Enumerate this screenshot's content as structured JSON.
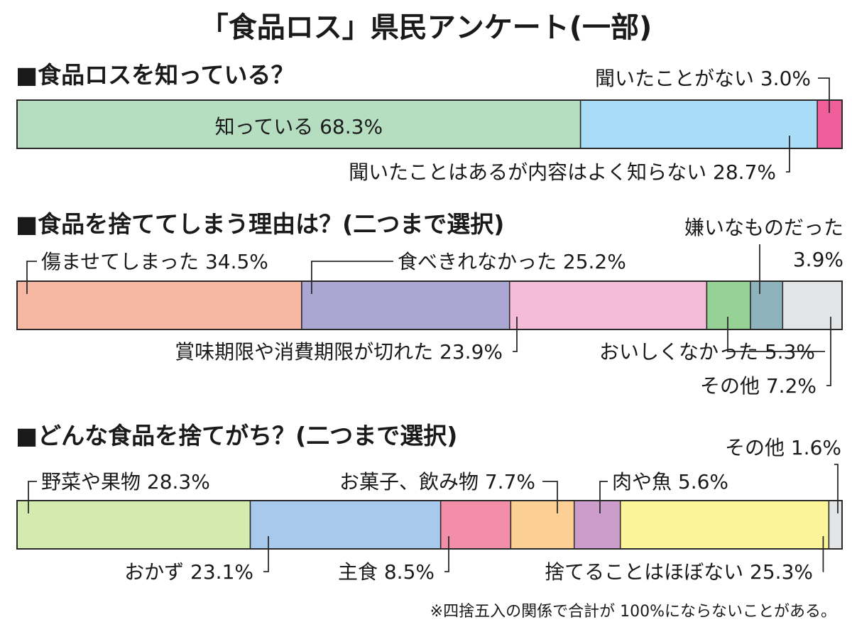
{
  "title": "「食品ロス」県民アンケート(一部)",
  "footnote": "※四捨五入の関係で合計が 100%にならないことがある。",
  "chart_data": [
    {
      "type": "bar",
      "stacked": true,
      "orientation": "horizontal",
      "title": "■食品ロスを知っている？",
      "unit": "%",
      "series": [
        {
          "name": "知っている",
          "value": 68.3,
          "label": "知っている 68.3%",
          "color": "#b5ddc0"
        },
        {
          "name": "聞いたことはあるが内容はよく知らない",
          "value": 28.7,
          "label": "聞いたことはあるが内容はよく知らない 28.7%",
          "color": "#a9dcf6"
        },
        {
          "name": "聞いたことがない",
          "value": 3.0,
          "label": "聞いたことがない 3.0%",
          "color": "#ef5d9a"
        }
      ]
    },
    {
      "type": "bar",
      "stacked": true,
      "orientation": "horizontal",
      "title": "■食品を捨ててしまう理由は？(二つまで選択)",
      "unit": "%",
      "series": [
        {
          "name": "傷ませてしまった",
          "value": 34.5,
          "label": "傷ませてしまった 34.5%",
          "color": "#f7b8a3"
        },
        {
          "name": "食べきれなかった",
          "value": 25.2,
          "label": "食べきれなかった 25.2%",
          "color": "#aaa7d3"
        },
        {
          "name": "賞味期限や消費期限が切れた",
          "value": 23.9,
          "label": "賞味期限や消費期限が切れた 23.9%",
          "color": "#f4bcd8"
        },
        {
          "name": "おいしくなかった",
          "value": 5.3,
          "label": "おいしくなかった 5.3%",
          "color": "#96d196"
        },
        {
          "name": "嫌いなものだった",
          "value": 3.9,
          "label_lines": [
            "嫌いなものだった",
            "3.9%"
          ],
          "color": "#8fb3bd"
        },
        {
          "name": "その他",
          "value": 7.2,
          "label": "その他 7.2%",
          "color": "#e3e4e6"
        }
      ]
    },
    {
      "type": "bar",
      "stacked": true,
      "orientation": "horizontal",
      "title": "■どんな食品を捨てがち？(二つまで選択)",
      "unit": "%",
      "series": [
        {
          "name": "野菜や果物",
          "value": 28.3,
          "label": "野菜や果物 28.3%",
          "color": "#d4ebaf"
        },
        {
          "name": "おかず",
          "value": 23.1,
          "label": "おかず 23.1%",
          "color": "#a7c9ec"
        },
        {
          "name": "主食",
          "value": 8.5,
          "label": "主食 8.5%",
          "color": "#f28ea7"
        },
        {
          "name": "お菓子、飲み物",
          "value": 7.7,
          "label": "お菓子、飲み物 7.7%",
          "color": "#fcd095"
        },
        {
          "name": "肉や魚",
          "value": 5.6,
          "label": "肉や魚 5.6%",
          "color": "#cc9ccb"
        },
        {
          "name": "捨てることはほぼない",
          "value": 25.3,
          "label": "捨てることはほぼない 25.3%",
          "color": "#fbf498"
        },
        {
          "name": "その他",
          "value": 1.6,
          "label": "その他 1.6%",
          "color": "#e3e4e6"
        }
      ]
    }
  ]
}
